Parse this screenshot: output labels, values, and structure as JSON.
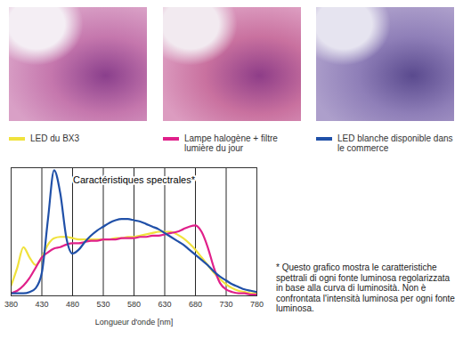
{
  "chart_data": {
    "type": "line",
    "title": "Caractéristiques spectrales*",
    "x_label": "Longueur d'onde [nm]",
    "annotations": [
      "* Questo grafico mostra le caratteristiche spettrali di ogni fonte luminosa regolarizzata in base alla curva di luminosità. Non è confrontata l'intensità luminosa per ogni fonte luminosa."
    ],
    "x": [
      380,
      390,
      400,
      410,
      420,
      430,
      440,
      450,
      460,
      470,
      480,
      490,
      500,
      510,
      520,
      530,
      540,
      550,
      560,
      570,
      580,
      590,
      600,
      610,
      620,
      630,
      640,
      650,
      660,
      670,
      680,
      690,
      700,
      710,
      720,
      730,
      740,
      750,
      760,
      770,
      780
    ],
    "series": [
      {
        "name": "LED du BX3",
        "color": "#f0e23c",
        "values": [
          0.08,
          0.22,
          0.38,
          0.3,
          0.24,
          0.3,
          0.4,
          0.45,
          0.46,
          0.46,
          0.45,
          0.44,
          0.44,
          0.44,
          0.44,
          0.44,
          0.44,
          0.45,
          0.45,
          0.46,
          0.46,
          0.47,
          0.48,
          0.49,
          0.5,
          0.5,
          0.5,
          0.48,
          0.45,
          0.41,
          0.36,
          0.3,
          0.24,
          0.18,
          0.13,
          0.09,
          0.06,
          0.04,
          0.03,
          0.02,
          0.02
        ]
      },
      {
        "name": "Lampe halogène + filtre lumière du jour",
        "color": "#e0208a",
        "values": [
          0.02,
          0.04,
          0.08,
          0.14,
          0.22,
          0.3,
          0.34,
          0.37,
          0.38,
          0.4,
          0.41,
          0.41,
          0.42,
          0.43,
          0.43,
          0.44,
          0.44,
          0.44,
          0.45,
          0.45,
          0.45,
          0.46,
          0.46,
          0.47,
          0.47,
          0.48,
          0.49,
          0.5,
          0.52,
          0.54,
          0.55,
          0.5,
          0.38,
          0.22,
          0.1,
          0.05,
          0.03,
          0.02,
          0.02,
          0.01,
          0.01
        ]
      },
      {
        "name": "LED blanche disponible dans le commerce",
        "color": "#2050a8",
        "values": [
          0.02,
          0.02,
          0.02,
          0.03,
          0.06,
          0.18,
          0.6,
          0.98,
          0.8,
          0.45,
          0.33,
          0.36,
          0.42,
          0.47,
          0.51,
          0.54,
          0.57,
          0.59,
          0.6,
          0.6,
          0.59,
          0.58,
          0.56,
          0.54,
          0.52,
          0.49,
          0.46,
          0.43,
          0.4,
          0.36,
          0.32,
          0.28,
          0.24,
          0.19,
          0.15,
          0.12,
          0.09,
          0.07,
          0.05,
          0.04,
          0.03
        ]
      }
    ],
    "xlim": [
      380,
      780
    ],
    "xticks": [
      380,
      430,
      480,
      530,
      580,
      630,
      680,
      730,
      780
    ],
    "ylim": [
      0,
      1
    ],
    "grid": true,
    "legend": "top",
    "tick_labels": "x"
  }
}
